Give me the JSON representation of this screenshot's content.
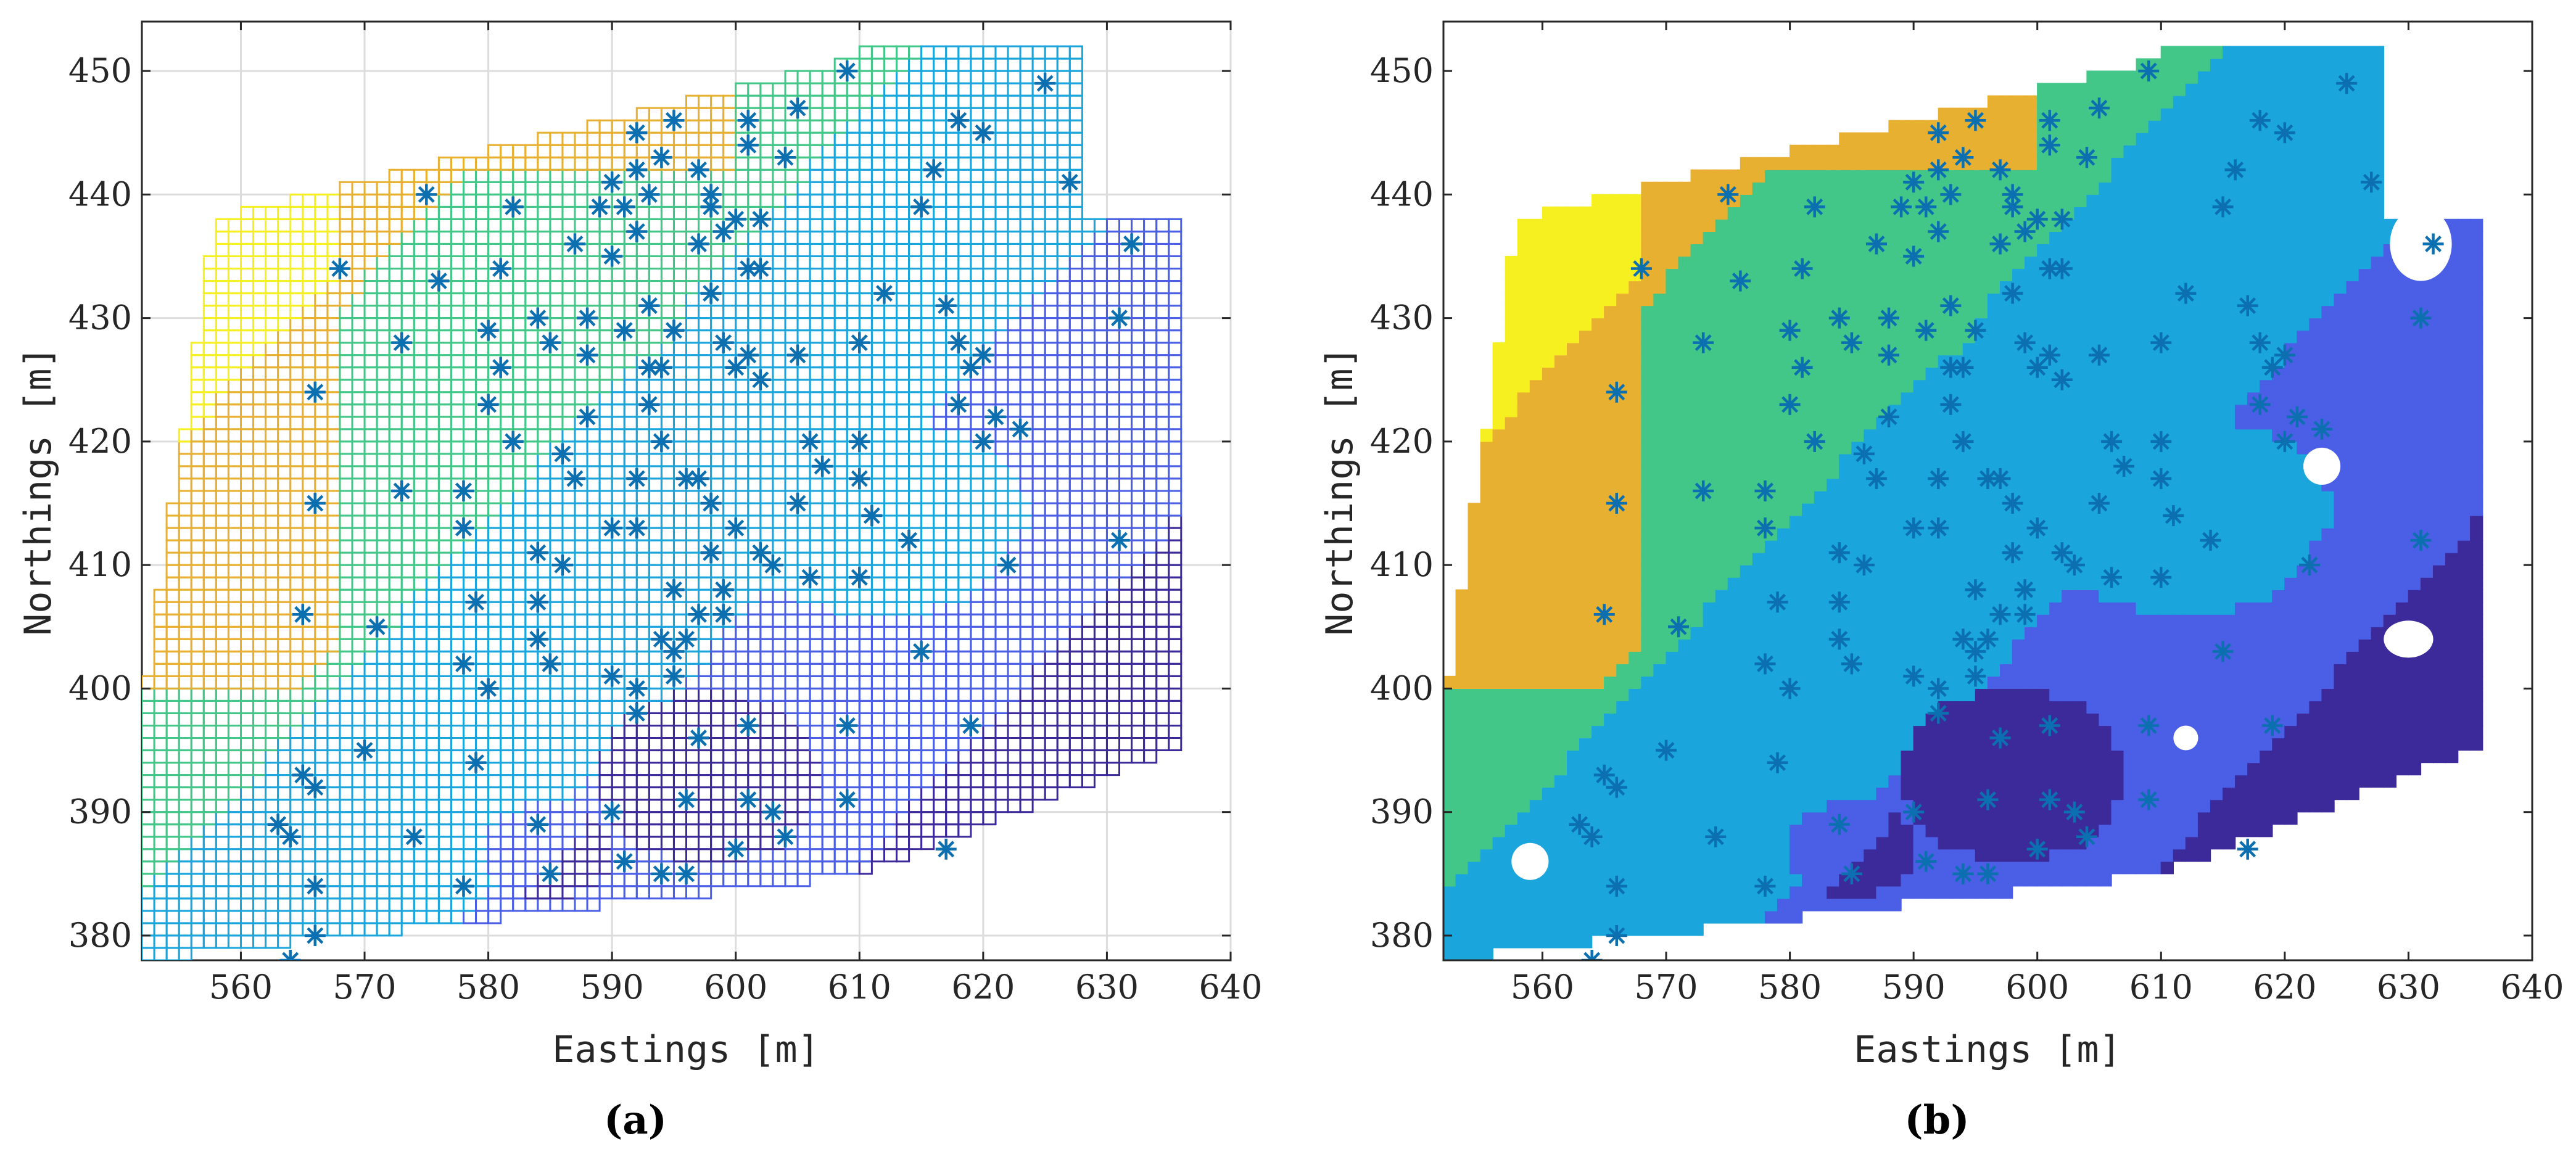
{
  "figure": {
    "label_a": "(a)",
    "label_b": "(b)"
  },
  "colors": {
    "sample_star": "#0b6fb0",
    "dark_purple": "#3d2a9a",
    "medium_blue": "#4a5fe6",
    "light_blue": "#1aa6dc",
    "green": "#42c788",
    "orange": "#e8b030",
    "yellow": "#f7f020"
  },
  "chart_data": [
    {
      "panel": "a",
      "type": "mesh",
      "xlabel": "Eastings [m]",
      "ylabel": "Northings [m]",
      "xlim": [
        552,
        640
      ],
      "ylim": [
        378,
        454
      ],
      "xticks": [
        560,
        570,
        580,
        590,
        600,
        610,
        620,
        630,
        640
      ],
      "yticks": [
        380,
        390,
        400,
        410,
        420,
        430,
        440,
        450
      ],
      "grid": true,
      "samples": [
        [
          564,
          378
        ],
        [
          566,
          380
        ],
        [
          563,
          389
        ],
        [
          565,
          393
        ],
        [
          566,
          392
        ],
        [
          564,
          388
        ],
        [
          566,
          384
        ],
        [
          565,
          406
        ],
        [
          566,
          415
        ],
        [
          566,
          424
        ],
        [
          568,
          434
        ],
        [
          570,
          395
        ],
        [
          571,
          405
        ],
        [
          573,
          416
        ],
        [
          573,
          428
        ],
        [
          574,
          388
        ],
        [
          575,
          440
        ],
        [
          576,
          433
        ],
        [
          578,
          402
        ],
        [
          578,
          413
        ],
        [
          578,
          416
        ],
        [
          578,
          384
        ],
        [
          579,
          394
        ],
        [
          579,
          407
        ],
        [
          580,
          400
        ],
        [
          580,
          429
        ],
        [
          580,
          423
        ],
        [
          581,
          434
        ],
        [
          581,
          426
        ],
        [
          582,
          420
        ],
        [
          582,
          439
        ],
        [
          584,
          389
        ],
        [
          584,
          404
        ],
        [
          584,
          407
        ],
        [
          584,
          411
        ],
        [
          584,
          430
        ],
        [
          585,
          402
        ],
        [
          585,
          385
        ],
        [
          585,
          428
        ],
        [
          586,
          419
        ],
        [
          586,
          410
        ],
        [
          587,
          417
        ],
        [
          587,
          436
        ],
        [
          588,
          427
        ],
        [
          588,
          422
        ],
        [
          588,
          430
        ],
        [
          589,
          439
        ],
        [
          590,
          401
        ],
        [
          590,
          390
        ],
        [
          590,
          413
        ],
        [
          590,
          435
        ],
        [
          590,
          441
        ],
        [
          591,
          439
        ],
        [
          591,
          429
        ],
        [
          591,
          386
        ],
        [
          592,
          413
        ],
        [
          592,
          398
        ],
        [
          592,
          445
        ],
        [
          592,
          400
        ],
        [
          592,
          417
        ],
        [
          592,
          442
        ],
        [
          592,
          437
        ],
        [
          593,
          431
        ],
        [
          593,
          426
        ],
        [
          593,
          440
        ],
        [
          593,
          423
        ],
        [
          594,
          404
        ],
        [
          594,
          385
        ],
        [
          594,
          420
        ],
        [
          594,
          426
        ],
        [
          594,
          443
        ],
        [
          595,
          401
        ],
        [
          595,
          403
        ],
        [
          595,
          408
        ],
        [
          595,
          429
        ],
        [
          595,
          446
        ],
        [
          596,
          404
        ],
        [
          596,
          417
        ],
        [
          596,
          391
        ],
        [
          596,
          385
        ],
        [
          597,
          396
        ],
        [
          597,
          406
        ],
        [
          597,
          417
        ],
        [
          597,
          436
        ],
        [
          597,
          442
        ],
        [
          598,
          432
        ],
        [
          598,
          415
        ],
        [
          598,
          411
        ],
        [
          598,
          439
        ],
        [
          598,
          440
        ],
        [
          599,
          408
        ],
        [
          599,
          437
        ],
        [
          599,
          428
        ],
        [
          599,
          406
        ],
        [
          600,
          413
        ],
        [
          600,
          426
        ],
        [
          600,
          438
        ],
        [
          600,
          387
        ],
        [
          601,
          397
        ],
        [
          601,
          391
        ],
        [
          601,
          434
        ],
        [
          601,
          427
        ],
        [
          601,
          446
        ],
        [
          601,
          444
        ],
        [
          602,
          411
        ],
        [
          602,
          438
        ],
        [
          602,
          425
        ],
        [
          602,
          434
        ],
        [
          603,
          390
        ],
        [
          603,
          410
        ],
        [
          604,
          443
        ],
        [
          604,
          388
        ],
        [
          605,
          427
        ],
        [
          605,
          447
        ],
        [
          605,
          415
        ],
        [
          606,
          409
        ],
        [
          606,
          420
        ],
        [
          607,
          418
        ],
        [
          609,
          450
        ],
        [
          609,
          391
        ],
        [
          609,
          397
        ],
        [
          610,
          409
        ],
        [
          610,
          420
        ],
        [
          610,
          428
        ],
        [
          610,
          417
        ],
        [
          611,
          414
        ],
        [
          612,
          432
        ],
        [
          614,
          412
        ],
        [
          615,
          403
        ],
        [
          615,
          439
        ],
        [
          616,
          442
        ],
        [
          617,
          387
        ],
        [
          617,
          431
        ],
        [
          618,
          423
        ],
        [
          618,
          446
        ],
        [
          618,
          428
        ],
        [
          619,
          426
        ],
        [
          619,
          397
        ],
        [
          620,
          420
        ],
        [
          620,
          427
        ],
        [
          620,
          445
        ],
        [
          621,
          422
        ],
        [
          622,
          410
        ],
        [
          623,
          421
        ],
        [
          625,
          449
        ],
        [
          627,
          441
        ],
        [
          631,
          430
        ],
        [
          631,
          412
        ],
        [
          632,
          436
        ]
      ]
    },
    {
      "panel": "b",
      "type": "contourf",
      "xlabel": "Eastings [m]",
      "ylabel": "Northings [m]",
      "xlim": [
        552,
        640
      ],
      "ylim": [
        378,
        454
      ],
      "xticks": [
        560,
        570,
        580,
        590,
        600,
        610,
        620,
        630,
        640
      ],
      "yticks": [
        380,
        390,
        400,
        410,
        420,
        430,
        440,
        450
      ],
      "grid": false,
      "levels": [
        "dark_purple",
        "medium_blue",
        "light_blue",
        "green",
        "orange",
        "yellow"
      ],
      "samples": "same as panel a"
    }
  ]
}
